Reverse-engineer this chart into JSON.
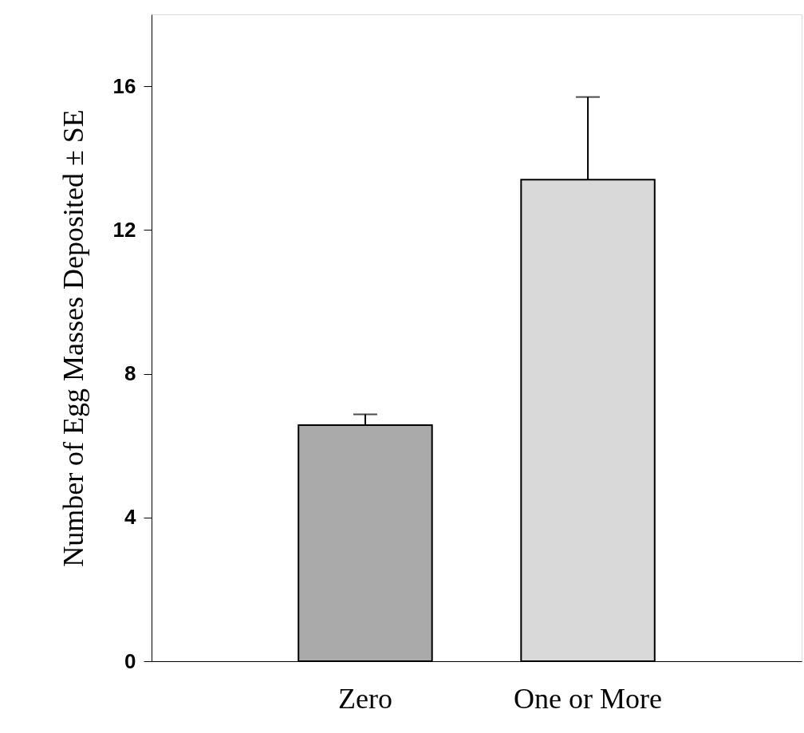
{
  "chart_data": {
    "type": "bar",
    "ylabel": "Number of Egg Masses Deposited ± SE",
    "categories": [
      "Zero",
      "One or More"
    ],
    "values": [
      6.57,
      13.4
    ],
    "colors": [
      "#aaaaaa",
      "#d9d9d9"
    ],
    "errors": [
      0.3,
      2.3
    ],
    "ylim": [
      0,
      18
    ],
    "yticks": [
      0,
      4,
      8,
      12,
      16
    ],
    "grid": false
  }
}
